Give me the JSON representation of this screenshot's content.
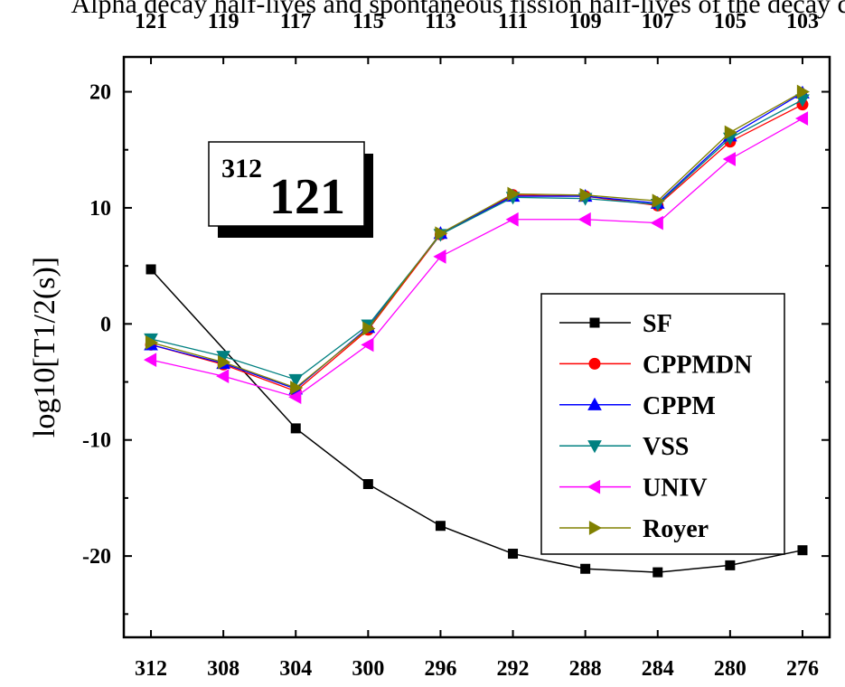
{
  "chart_data": {
    "type": "line",
    "title": "Alpha decay half-lives and spontaneous fission half-lives of the decay chain",
    "x": [
      312,
      308,
      304,
      300,
      296,
      292,
      288,
      284,
      280,
      276
    ],
    "x_top": [
      "121",
      "119",
      "117",
      "115",
      "113",
      "111",
      "109",
      "107",
      "105",
      "103"
    ],
    "xlim": [
      313.5,
      274.5
    ],
    "ylim": [
      -27,
      23
    ],
    "yticks": [
      20,
      10,
      0,
      -10,
      -20
    ],
    "ylabel": "log10[T1/2(s)]",
    "legend_position": "right-center",
    "inset_label": {
      "mass": "312",
      "element": "121"
    },
    "series": [
      {
        "name": "SF",
        "color": "#000000",
        "marker": "square",
        "values": [
          4.7,
          null,
          -9.0,
          -13.8,
          -17.4,
          -19.8,
          -21.1,
          -21.4,
          -20.8,
          -19.5
        ]
      },
      {
        "name": "CPPMDN",
        "color": "#ff0000",
        "marker": "circle",
        "values": [
          -1.8,
          -3.5,
          -5.8,
          -0.5,
          7.7,
          11.1,
          11.0,
          10.2,
          15.7,
          18.9
        ]
      },
      {
        "name": "CPPM",
        "color": "#0000ff",
        "marker": "triangle-up",
        "values": [
          -1.8,
          -3.4,
          -5.6,
          -0.3,
          7.8,
          11.0,
          11.0,
          10.4,
          16.2,
          19.9
        ]
      },
      {
        "name": "VSS",
        "color": "#008080",
        "marker": "triangle-down",
        "values": [
          -1.3,
          -2.8,
          -4.8,
          -0.1,
          7.7,
          10.9,
          10.8,
          10.3,
          16.0,
          19.3
        ]
      },
      {
        "name": "UNIV",
        "color": "#ff00ff",
        "marker": "triangle-left",
        "values": [
          -3.1,
          -4.5,
          -6.3,
          -1.8,
          5.8,
          9.0,
          9.0,
          8.7,
          14.2,
          17.7
        ]
      },
      {
        "name": "Royer",
        "color": "#808000",
        "marker": "triangle-right",
        "values": [
          -1.6,
          -3.3,
          -5.5,
          -0.4,
          7.8,
          11.2,
          11.1,
          10.6,
          16.5,
          20.0
        ]
      }
    ]
  }
}
